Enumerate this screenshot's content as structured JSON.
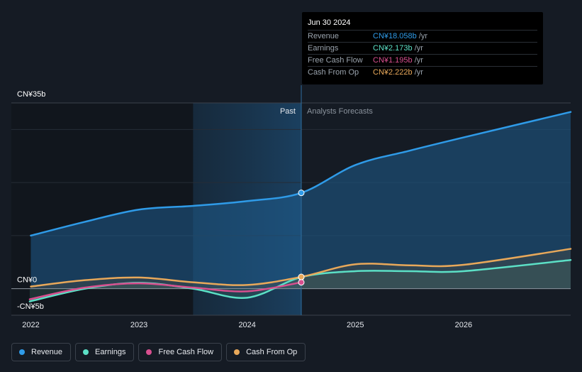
{
  "chart_data": {
    "type": "area",
    "x_unit": "year",
    "xlim": [
      2021.82,
      2026.99
    ],
    "ylim": [
      -5,
      35
    ],
    "y_ticks": [
      {
        "value": 35,
        "label": "CN¥35b"
      },
      {
        "value": 0,
        "label": "CN¥0"
      },
      {
        "value": -5,
        "label": "-CN¥5b"
      }
    ],
    "x_ticks": [
      {
        "value": 2022,
        "label": "2022"
      },
      {
        "value": 2023,
        "label": "2023"
      },
      {
        "value": 2024,
        "label": "2024"
      },
      {
        "value": 2025,
        "label": "2025"
      },
      {
        "value": 2026,
        "label": "2026"
      }
    ],
    "past_label": "Past",
    "forecast_label": "Analysts Forecasts",
    "divider_x": 2024.5,
    "highlight_start_x": 2023.5,
    "series": [
      {
        "name": "Revenue",
        "color": "#2f9be8",
        "points": [
          [
            2022.0,
            10.0
          ],
          [
            2022.5,
            12.6
          ],
          [
            2023.0,
            14.9
          ],
          [
            2023.5,
            15.6
          ],
          [
            2024.0,
            16.5
          ],
          [
            2024.5,
            18.058
          ],
          [
            2025.0,
            23.3
          ],
          [
            2025.5,
            26.0
          ],
          [
            2026.0,
            28.5
          ],
          [
            2026.99,
            33.3
          ]
        ]
      },
      {
        "name": "Earnings",
        "color": "#5ce0c6",
        "points": [
          [
            2021.99,
            -2.4
          ],
          [
            2022.5,
            0.0
          ],
          [
            2023.0,
            1.1
          ],
          [
            2023.5,
            0.0
          ],
          [
            2024.0,
            -1.7
          ],
          [
            2024.5,
            2.173
          ],
          [
            2025.0,
            3.3
          ],
          [
            2025.5,
            3.3
          ],
          [
            2026.0,
            3.3
          ],
          [
            2026.99,
            5.4
          ]
        ]
      },
      {
        "name": "Free Cash Flow",
        "color": "#d84f8f",
        "points": [
          [
            2021.99,
            -2.0
          ],
          [
            2022.5,
            0.2
          ],
          [
            2023.0,
            1.0
          ],
          [
            2023.5,
            0.2
          ],
          [
            2024.0,
            -0.5
          ],
          [
            2024.5,
            1.195
          ]
        ]
      },
      {
        "name": "Cash From Op",
        "color": "#e8a85a",
        "points": [
          [
            2022.0,
            0.4
          ],
          [
            2022.5,
            1.6
          ],
          [
            2023.0,
            2.1
          ],
          [
            2023.5,
            1.2
          ],
          [
            2024.0,
            0.7
          ],
          [
            2024.5,
            2.222
          ],
          [
            2025.0,
            4.6
          ],
          [
            2025.5,
            4.4
          ],
          [
            2026.0,
            4.5
          ],
          [
            2026.99,
            7.5
          ]
        ]
      }
    ]
  },
  "tooltip": {
    "date": "Jun 30 2024",
    "unit": "/yr",
    "rows": [
      {
        "label": "Revenue",
        "value": "CN¥18.058b",
        "color": "#2f9be8"
      },
      {
        "label": "Earnings",
        "value": "CN¥2.173b",
        "color": "#5ce0c6"
      },
      {
        "label": "Free Cash Flow",
        "value": "CN¥1.195b",
        "color": "#d84f8f"
      },
      {
        "label": "Cash From Op",
        "value": "CN¥2.222b",
        "color": "#e8a85a"
      }
    ]
  },
  "legend": [
    {
      "label": "Revenue",
      "color": "#2f9be8"
    },
    {
      "label": "Earnings",
      "color": "#5ce0c6"
    },
    {
      "label": "Free Cash Flow",
      "color": "#d84f8f"
    },
    {
      "label": "Cash From Op",
      "color": "#e8a85a"
    }
  ]
}
